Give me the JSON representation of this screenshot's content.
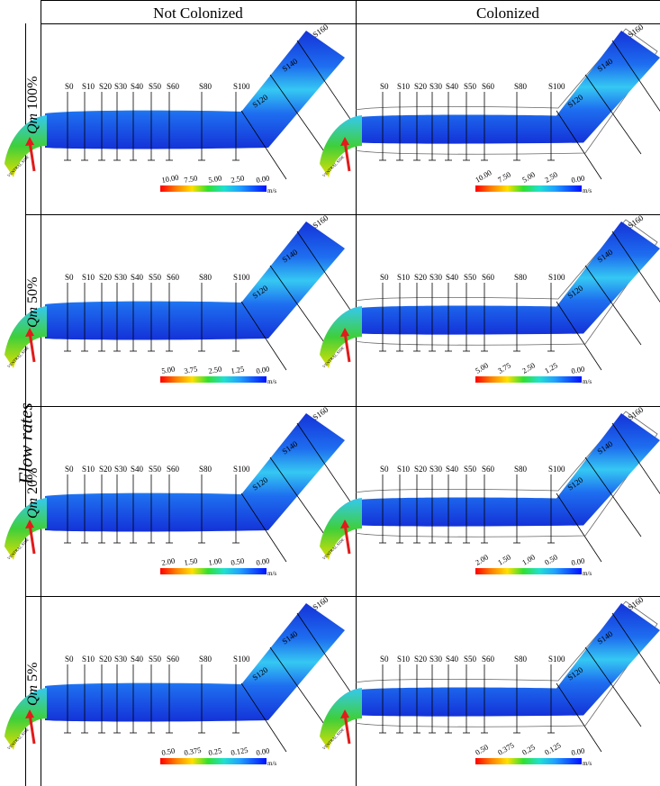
{
  "columns": [
    "Not Colonized",
    "Colonized"
  ],
  "side_title": "Flow rates",
  "rows": [
    {
      "qm": "Qm",
      "pct": "100%",
      "scale": [
        "10.00",
        "7.50",
        "5.00",
        "2.50",
        "0.00"
      ]
    },
    {
      "qm": "Qm",
      "pct": "50%",
      "scale": [
        "5.00",
        "3.75",
        "2.50",
        "1.25",
        "0.00"
      ]
    },
    {
      "qm": "Qm",
      "pct": "20%",
      "scale": [
        "2.00",
        "1.50",
        "1.00",
        "0.50",
        "0.00"
      ]
    },
    {
      "qm": "Qm",
      "pct": "5%",
      "scale": [
        "0.50",
        "0.375",
        "0.25",
        "0.125",
        "0.00"
      ]
    }
  ],
  "unit": "m/s",
  "sections_straight": [
    "S0",
    "S10",
    "S20",
    "S30",
    "S40",
    "S50",
    "S60",
    "S80",
    "S100"
  ],
  "sections_bend": [
    "S120",
    "S140",
    "S160"
  ],
  "inlet_label": "VENTRAL SIDE",
  "colors": {
    "grid_line": "#000000",
    "arrow": "#e21b1b",
    "flow_deep": "#1432d8",
    "flow_mid": "#1e6ef0",
    "flow_light": "#35c8f2",
    "flow_green": "#3fcf3a",
    "flow_yellow": "#e6e000",
    "scale_red": "#ff0000",
    "scale_blue": "#0000ff"
  }
}
